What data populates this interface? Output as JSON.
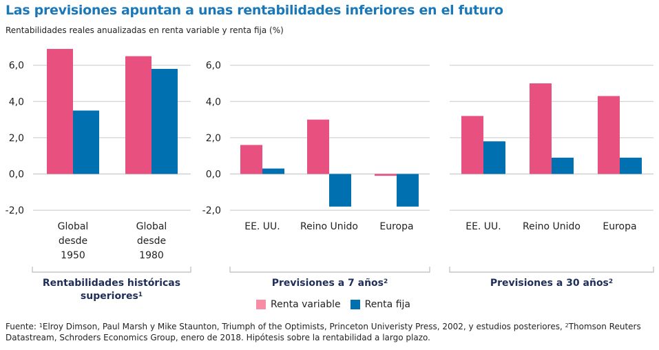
{
  "header": {
    "title": "Las previsiones apuntan a unas rentabilidades inferiores en el futuro",
    "subtitle": "Rentabilidades reales anualizadas en renta variable y renta fija (%)"
  },
  "colors": {
    "renta_variable": "#e8507f",
    "renta_fija": "#0070b0",
    "legend_renta_variable": "#f78ca4",
    "title": "#1b78b8",
    "group_title": "#1f2d5a",
    "gridline": "#c8c8c8"
  },
  "legend": {
    "items": [
      {
        "label": "Renta variable",
        "color": "#f78ca4"
      },
      {
        "label": "Renta fija",
        "color": "#0070b0"
      }
    ],
    "placement": "bottom-center"
  },
  "groups": [
    {
      "title": "Rentabilidades históricas superiores",
      "footnote": "1"
    },
    {
      "title": "Previsiones a 7 años",
      "footnote": "2"
    },
    {
      "title": "Previsiones a 30 años",
      "footnote": "2"
    }
  ],
  "footer": {
    "prefix": "Fuente: ",
    "note1_marker": "1",
    "note1_text": "Elroy Dimson, Paul Marsh y Mike Staunton, Triumph of the Optimists, Princeton Univeristy Press, 2002, y estudios posteriores, ",
    "note2_marker": "2",
    "note2_text": "Thomson Reuters Datastream, Schroders Economics Group, enero de 2018. Hipótesis sobre la rentabilidad a largo plazo."
  },
  "chart_data": [
    {
      "type": "bar",
      "title": "Rentabilidades históricas superiores",
      "categories": [
        [
          "Global",
          "desde",
          "1950"
        ],
        [
          "Global",
          "desde",
          "1980"
        ]
      ],
      "series": [
        {
          "name": "Renta variable",
          "values": [
            6.9,
            6.5
          ]
        },
        {
          "name": "Renta fija",
          "values": [
            3.5,
            5.8
          ]
        }
      ],
      "ylim": [
        -2,
        6
      ],
      "yticks": [
        "6,0",
        "4,0",
        "2,0",
        "0,0",
        "-2,0"
      ],
      "ytick_values": [
        6,
        4,
        2,
        0,
        -2
      ],
      "grid": true,
      "xlabel": "",
      "ylabel": ""
    },
    {
      "type": "bar",
      "title": "Previsiones a 7 años",
      "categories": [
        [
          "EE. UU."
        ],
        [
          "Reino Unido"
        ],
        [
          "Europa"
        ]
      ],
      "series": [
        {
          "name": "Renta variable",
          "values": [
            1.6,
            3.0,
            -0.1
          ]
        },
        {
          "name": "Renta fija",
          "values": [
            0.3,
            -1.8,
            -1.8
          ]
        }
      ],
      "ylim": [
        -2,
        6
      ],
      "yticks": [
        "6,0",
        "4,0",
        "2,0",
        "0,0",
        "-2,0"
      ],
      "ytick_values": [
        6,
        4,
        2,
        0,
        -2
      ],
      "grid": true,
      "xlabel": "",
      "ylabel": ""
    },
    {
      "type": "bar",
      "title": "Previsiones a 30 años",
      "categories": [
        [
          "EE. UU."
        ],
        [
          "Reino Unido"
        ],
        [
          "Europa"
        ]
      ],
      "series": [
        {
          "name": "Renta variable",
          "values": [
            3.2,
            5.0,
            4.3
          ]
        },
        {
          "name": "Renta fija",
          "values": [
            1.8,
            0.9,
            0.9
          ]
        }
      ],
      "ylim": [
        -2,
        6
      ],
      "yticks": [],
      "ytick_values": [
        6,
        4,
        2,
        0,
        -2
      ],
      "grid": true,
      "xlabel": "",
      "ylabel": ""
    }
  ]
}
